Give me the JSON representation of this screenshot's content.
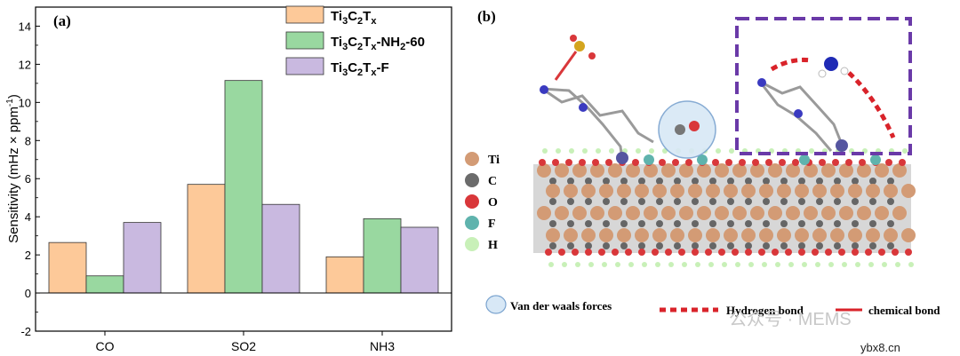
{
  "chart_data": {
    "type": "bar",
    "panel_label": "(a)",
    "categories": [
      "CO",
      "SO2",
      "NH3"
    ],
    "series": [
      {
        "name": "Ti3C2Tx",
        "legend_base": "Ti",
        "legend_sub1": "3",
        "legend_mid": "C",
        "legend_sub2": "2",
        "legend_mid2": "T",
        "legend_sub3": "x",
        "legend_suffix": "",
        "color": "#fdc999",
        "values": [
          2.65,
          5.7,
          1.9
        ]
      },
      {
        "name": "Ti3C2Tx-NH2-60",
        "legend_base": "Ti",
        "legend_sub1": "3",
        "legend_mid": "C",
        "legend_sub2": "2",
        "legend_mid2": "T",
        "legend_sub3": "x",
        "legend_suffix": "-NH",
        "legend_sub4": "2",
        "legend_suffix2": "-60",
        "color": "#99d8a0",
        "values": [
          0.9,
          11.15,
          3.9
        ]
      },
      {
        "name": "Ti3C2Tx-F",
        "legend_base": "Ti",
        "legend_sub1": "3",
        "legend_mid": "C",
        "legend_sub2": "2",
        "legend_mid2": "T",
        "legend_sub3": "x",
        "legend_suffix": "-F",
        "color": "#c9b9e0",
        "values": [
          3.7,
          4.65,
          3.45
        ]
      }
    ],
    "ylabel_main": "Sensitivity (mHz × ppm",
    "ylabel_sup": "-1",
    "ylabel_close": ")",
    "ylim": [
      -2,
      15
    ],
    "yticks": [
      -2,
      0,
      2,
      4,
      6,
      8,
      10,
      12,
      14
    ]
  },
  "panel_b": {
    "label": "(b)",
    "atoms_legend": [
      {
        "name": "Ti",
        "color": "#d39b75"
      },
      {
        "name": "C",
        "color": "#6b6b6b"
      },
      {
        "name": "O",
        "color": "#d9373a"
      },
      {
        "name": "F",
        "color": "#5fb3ad"
      },
      {
        "name": "H",
        "color": "#c8f0b8"
      }
    ],
    "interaction_legend": {
      "vdw": "Van der waals forces",
      "hbond": "Hydrogen bond",
      "chem": "chemical bond"
    },
    "watermark": "公众号 · MEMS",
    "site_mark": "ybx8.cn"
  }
}
